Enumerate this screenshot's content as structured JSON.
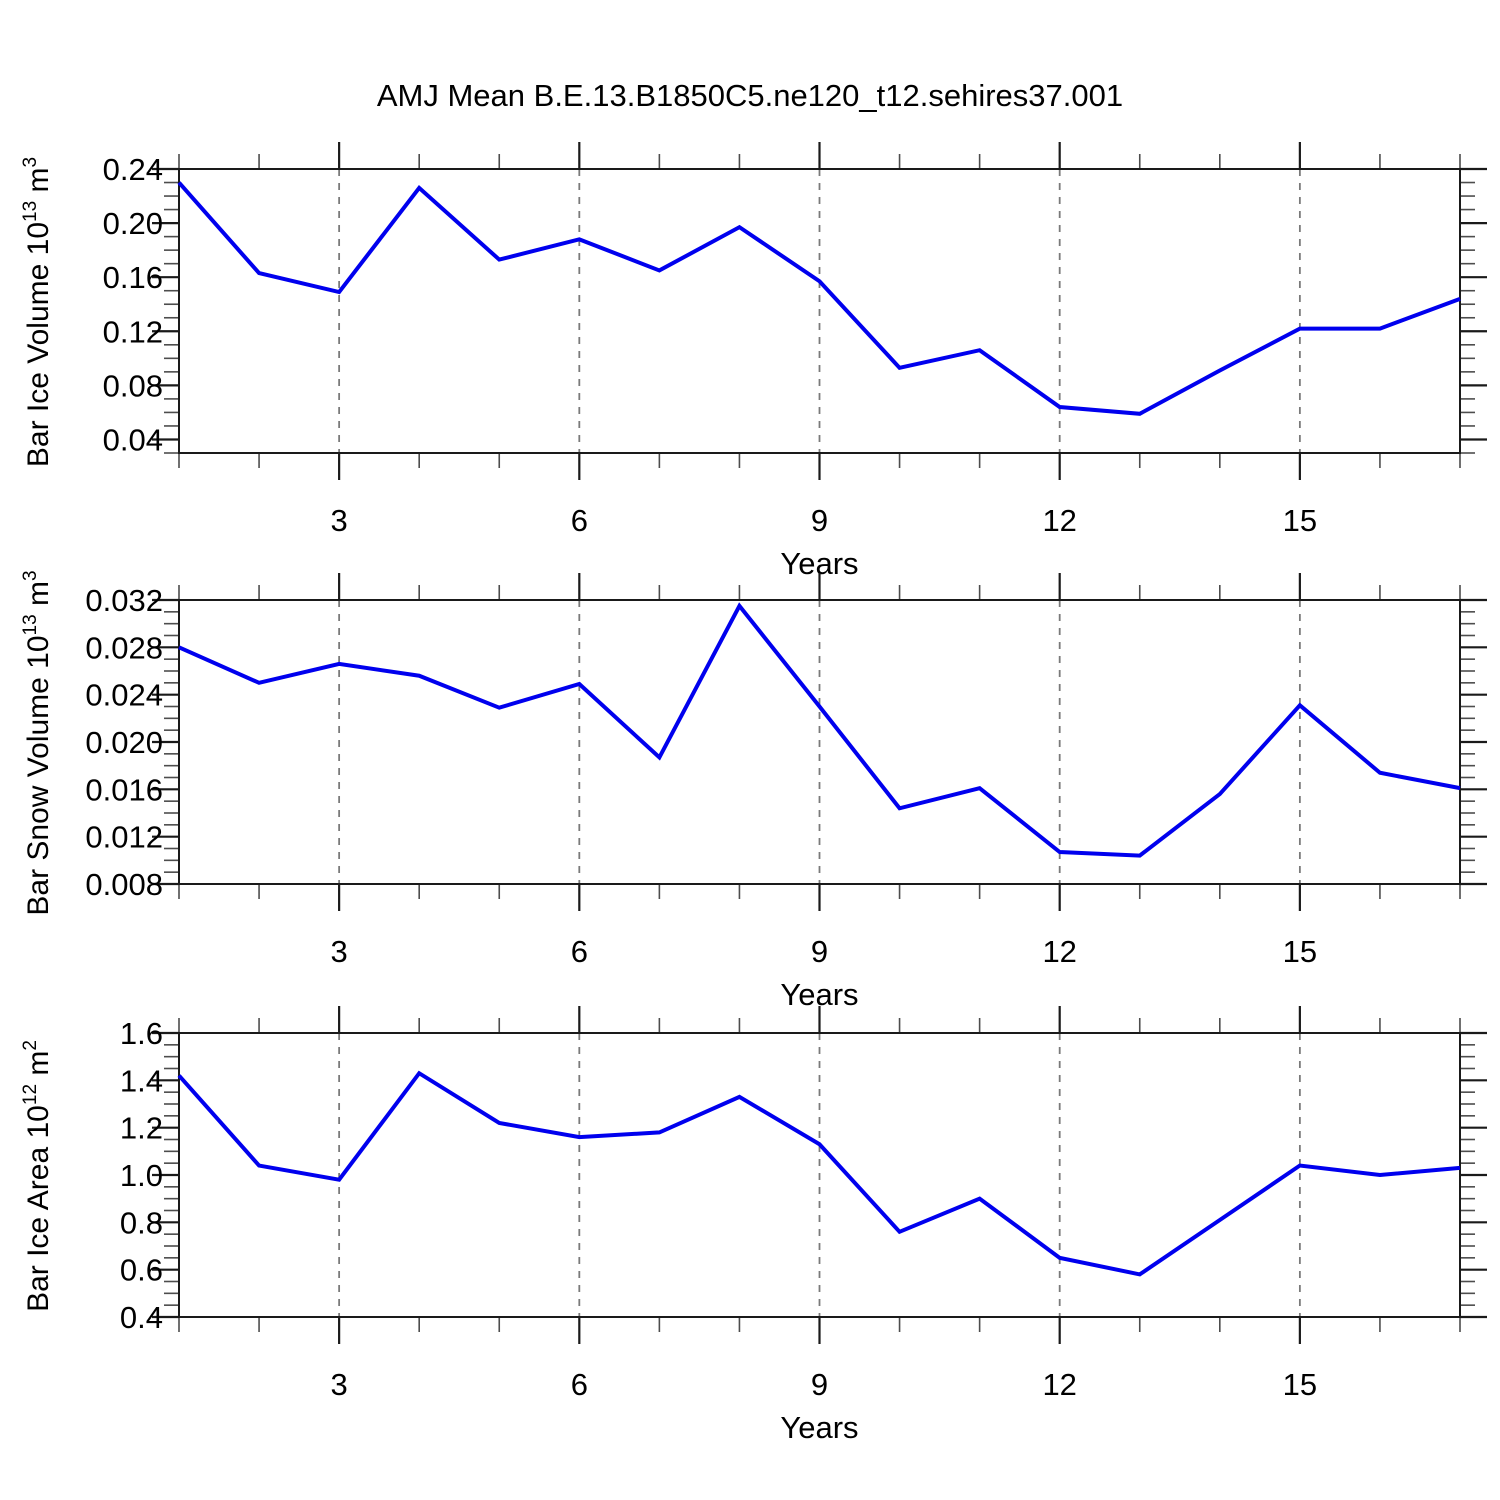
{
  "page": {
    "title": "AMJ Mean B.E.13.B1850C5.ne120_t12.sehires37.001"
  },
  "colors": {
    "line": "#0000ee",
    "frame": "#1a1a1a",
    "grid": "#7a7a7a",
    "minor_tick": "#4d4d4d",
    "text": "#000000"
  },
  "x_axis": {
    "label": "Years",
    "range": [
      1,
      17
    ],
    "major_ticks": [
      3,
      6,
      9,
      12,
      15
    ],
    "major_tick_labels": [
      "3",
      "6",
      "9",
      "12",
      "15"
    ],
    "minor_step": 1,
    "gridlines": "dashed-vertical-at-major-ticks"
  },
  "chart_data": [
    {
      "type": "line",
      "ylabel": {
        "base": "Bar Ice Volume 10",
        "exp1": "13",
        "mid": " m",
        "exp2": "3"
      },
      "ylabel_plain": "Bar Ice Volume 10^13 m^3",
      "xlabel": "Years",
      "x": [
        1,
        2,
        3,
        4,
        5,
        6,
        7,
        8,
        9,
        10,
        11,
        12,
        13,
        14,
        15,
        16,
        17
      ],
      "values": [
        0.23,
        0.163,
        0.149,
        0.226,
        0.173,
        0.188,
        0.165,
        0.197,
        0.157,
        0.093,
        0.106,
        0.064,
        0.059,
        0.091,
        0.122,
        0.122,
        0.144
      ],
      "ylim": [
        0.03,
        0.24
      ],
      "ytick_values": [
        0.04,
        0.08,
        0.12,
        0.16,
        0.2,
        0.24
      ],
      "ytick_labels": [
        "0.04",
        "0.08",
        "0.12",
        "0.16",
        "0.20",
        "0.24"
      ],
      "yminor_step": 0.01
    },
    {
      "type": "line",
      "ylabel": {
        "base": "Bar Snow Volume 10",
        "exp1": "13",
        "mid": " m",
        "exp2": "3"
      },
      "ylabel_plain": "Bar Snow Volume 10^13 m^3",
      "xlabel": "Years",
      "x": [
        1,
        2,
        3,
        4,
        5,
        6,
        7,
        8,
        9,
        10,
        11,
        12,
        13,
        14,
        15,
        16,
        17
      ],
      "values": [
        0.028,
        0.025,
        0.0266,
        0.0256,
        0.0229,
        0.0249,
        0.0187,
        0.0315,
        0.023,
        0.0144,
        0.0161,
        0.0107,
        0.0104,
        0.0156,
        0.0231,
        0.0174,
        0.0161
      ],
      "ylim": [
        0.008,
        0.032
      ],
      "ytick_values": [
        0.008,
        0.012,
        0.016,
        0.02,
        0.024,
        0.028,
        0.032
      ],
      "ytick_labels": [
        "0.008",
        "0.012",
        "0.016",
        "0.020",
        "0.024",
        "0.028",
        "0.032"
      ],
      "yminor_step": 0.001
    },
    {
      "type": "line",
      "ylabel": {
        "base": "Bar Ice Area 10",
        "exp1": "12",
        "mid": " m",
        "exp2": "2"
      },
      "ylabel_plain": "Bar Ice Area 10^12 m^2",
      "xlabel": "Years",
      "x": [
        1,
        2,
        3,
        4,
        5,
        6,
        7,
        8,
        9,
        10,
        11,
        12,
        13,
        14,
        15,
        16,
        17
      ],
      "values": [
        1.42,
        1.04,
        0.98,
        1.43,
        1.22,
        1.16,
        1.18,
        1.33,
        1.13,
        0.76,
        0.9,
        0.65,
        0.58,
        0.81,
        1.04,
        1.0,
        1.03
      ],
      "ylim": [
        0.4,
        1.6
      ],
      "ytick_values": [
        0.4,
        0.6,
        0.8,
        1.0,
        1.2,
        1.4,
        1.6
      ],
      "ytick_labels": [
        "0.4",
        "0.6",
        "0.8",
        "1.0",
        "1.2",
        "1.4",
        "1.6"
      ],
      "yminor_step": 0.05
    }
  ]
}
